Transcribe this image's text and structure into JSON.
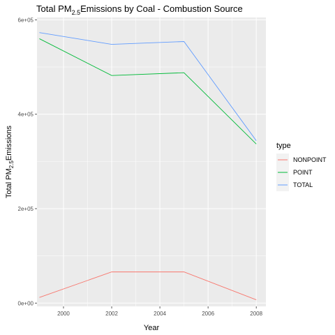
{
  "chart_data": {
    "type": "line",
    "title": {
      "prefix": "Total PM",
      "sub": "2.5",
      "suffix": "Emissions by Coal - Combustion Source"
    },
    "xlabel": "Year",
    "ylabel": {
      "prefix": "Total PM",
      "sub": "2.5",
      "suffix": "Emissions"
    },
    "x": [
      1999,
      2002,
      2005,
      2008
    ],
    "xlim": [
      1998.9,
      2008.4
    ],
    "ylim": [
      -7000,
      605000
    ],
    "x_ticks": [
      2000,
      2002,
      2004,
      2006,
      2008
    ],
    "x_tick_labels": [
      "2000",
      "2002",
      "2004",
      "2006",
      "2008"
    ],
    "y_ticks": [
      0,
      200000,
      400000,
      600000
    ],
    "y_tick_labels": [
      "0e+00",
      "2e+05",
      "4e+05",
      "6e+05"
    ],
    "grid": true,
    "legend_position": "right",
    "legend_title": "type",
    "series": [
      {
        "name": "NONPOINT",
        "color": "#F8766D",
        "values": [
          12000,
          66000,
          66000,
          7000
        ]
      },
      {
        "name": "POINT",
        "color": "#00BA38",
        "values": [
          560000,
          482000,
          488000,
          337000
        ]
      },
      {
        "name": "TOTAL",
        "color": "#619CFF",
        "values": [
          573000,
          548000,
          554000,
          344000
        ]
      }
    ]
  }
}
